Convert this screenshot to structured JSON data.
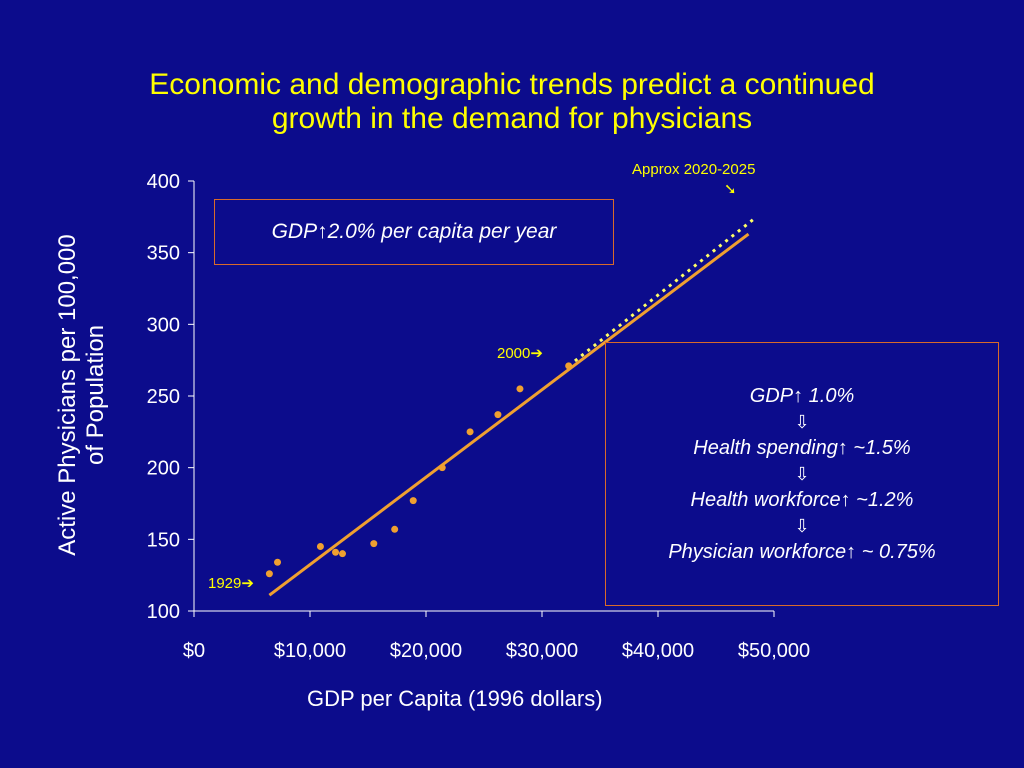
{
  "title": {
    "line1": "Economic and demographic trends predict a continued",
    "line2": "growth in the demand for physicians"
  },
  "colors": {
    "background": "#0c0c8c",
    "title": "#ffff00",
    "trend_line": "#f0a030",
    "projection": "#ffff66",
    "points": "#f0a030",
    "box_border": "#d86a2a",
    "text": "#ffffff"
  },
  "box_gdp": {
    "gdp": "GDP",
    "up_arrow": "↑",
    "text": " 2.0% per capita per year"
  },
  "box_chain": {
    "l1_main": "GDP",
    "l1_rate": " 1.0%",
    "down_arrow": "⇩",
    "l2_main": "Health spending",
    "l2_rate": " ~1.5%",
    "l3_main": "Health workforce",
    "l3_rate": " ~1.2%",
    "l4_main": "Physician workforce",
    "l4_rate": " ~ 0.75%",
    "up_arrow": "↑"
  },
  "annotations": {
    "y1929": "1929",
    "y2000": "2000",
    "future": "Approx 2020-2025",
    "right_arrow": "➔",
    "diag_arrow": "➘"
  },
  "chart_data": {
    "type": "scatter",
    "xlabel": "GDP per Capita (1996 dollars)",
    "ylabel": "Active Physicians per 100,000 of Population",
    "ylabel_line1": "Active Physicians per 100,000",
    "ylabel_line2": "of Population",
    "xlim": [
      0,
      50000
    ],
    "ylim": [
      100,
      400
    ],
    "xticks": [
      0,
      10000,
      20000,
      30000,
      40000,
      50000
    ],
    "xtick_labels": [
      "$0",
      "$10,000",
      "$20,000",
      "$30,000",
      "$40,000",
      "$50,000"
    ],
    "yticks": [
      100,
      150,
      200,
      250,
      300,
      350,
      400
    ],
    "ytick_labels": [
      "100",
      "150",
      "200",
      "250",
      "300",
      "350",
      "400"
    ],
    "points": [
      {
        "x": 6500,
        "y": 126
      },
      {
        "x": 7200,
        "y": 134
      },
      {
        "x": 10900,
        "y": 145
      },
      {
        "x": 12200,
        "y": 141
      },
      {
        "x": 12800,
        "y": 140
      },
      {
        "x": 15500,
        "y": 147
      },
      {
        "x": 17300,
        "y": 157
      },
      {
        "x": 18900,
        "y": 177
      },
      {
        "x": 21400,
        "y": 200
      },
      {
        "x": 23800,
        "y": 225
      },
      {
        "x": 26200,
        "y": 237
      },
      {
        "x": 28100,
        "y": 255
      },
      {
        "x": 32300,
        "y": 271
      }
    ],
    "trend_line": {
      "x": [
        6500,
        47800
      ],
      "y": [
        111,
        363
      ]
    },
    "projection_line": {
      "x": [
        32300,
        48500
      ],
      "y": [
        271,
        375
      ]
    }
  }
}
